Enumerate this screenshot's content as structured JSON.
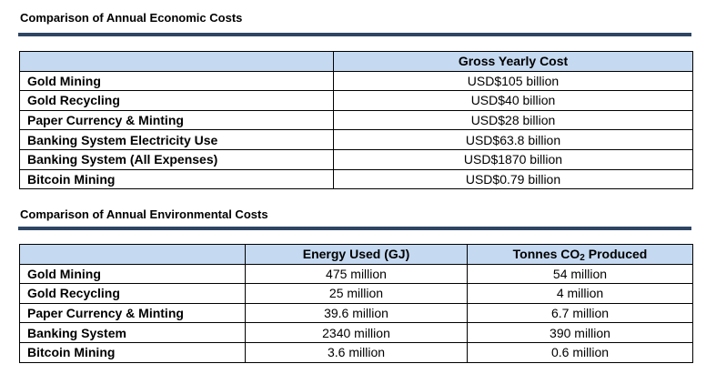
{
  "economic": {
    "title": "Comparison of Annual Economic Costs",
    "header": "Gross Yearly Cost",
    "rows": [
      {
        "label": "Gold Mining",
        "cost": "USD$105 billion"
      },
      {
        "label": "Gold Recycling",
        "cost": "USD$40 billion"
      },
      {
        "label": "Paper Currency & Minting",
        "cost": "USD$28 billion"
      },
      {
        "label": "Banking System Electricity Use",
        "cost": "USD$63.8 billion"
      },
      {
        "label": "Banking System (All Expenses)",
        "cost": "USD$1870 billion"
      },
      {
        "label": "Bitcoin Mining",
        "cost": "USD$0.79 billion"
      }
    ]
  },
  "environmental": {
    "title": "Comparison of Annual Environmental Costs",
    "header_energy": "Energy Used (GJ)",
    "header_co2_prefix": "Tonnes CO",
    "header_co2_sub": "2",
    "header_co2_suffix": " Produced",
    "rows": [
      {
        "label": "Gold Mining",
        "energy": "475 million",
        "co2": "54 million"
      },
      {
        "label": "Gold Recycling",
        "energy": "25 million",
        "co2": "4 million"
      },
      {
        "label": "Paper Currency & Minting",
        "energy": "39.6 million",
        "co2": "6.7 million"
      },
      {
        "label": "Banking System",
        "energy": "2340 million",
        "co2": "390 million"
      },
      {
        "label": "Bitcoin Mining",
        "energy": "3.6 million",
        "co2": "0.6 million"
      }
    ]
  }
}
